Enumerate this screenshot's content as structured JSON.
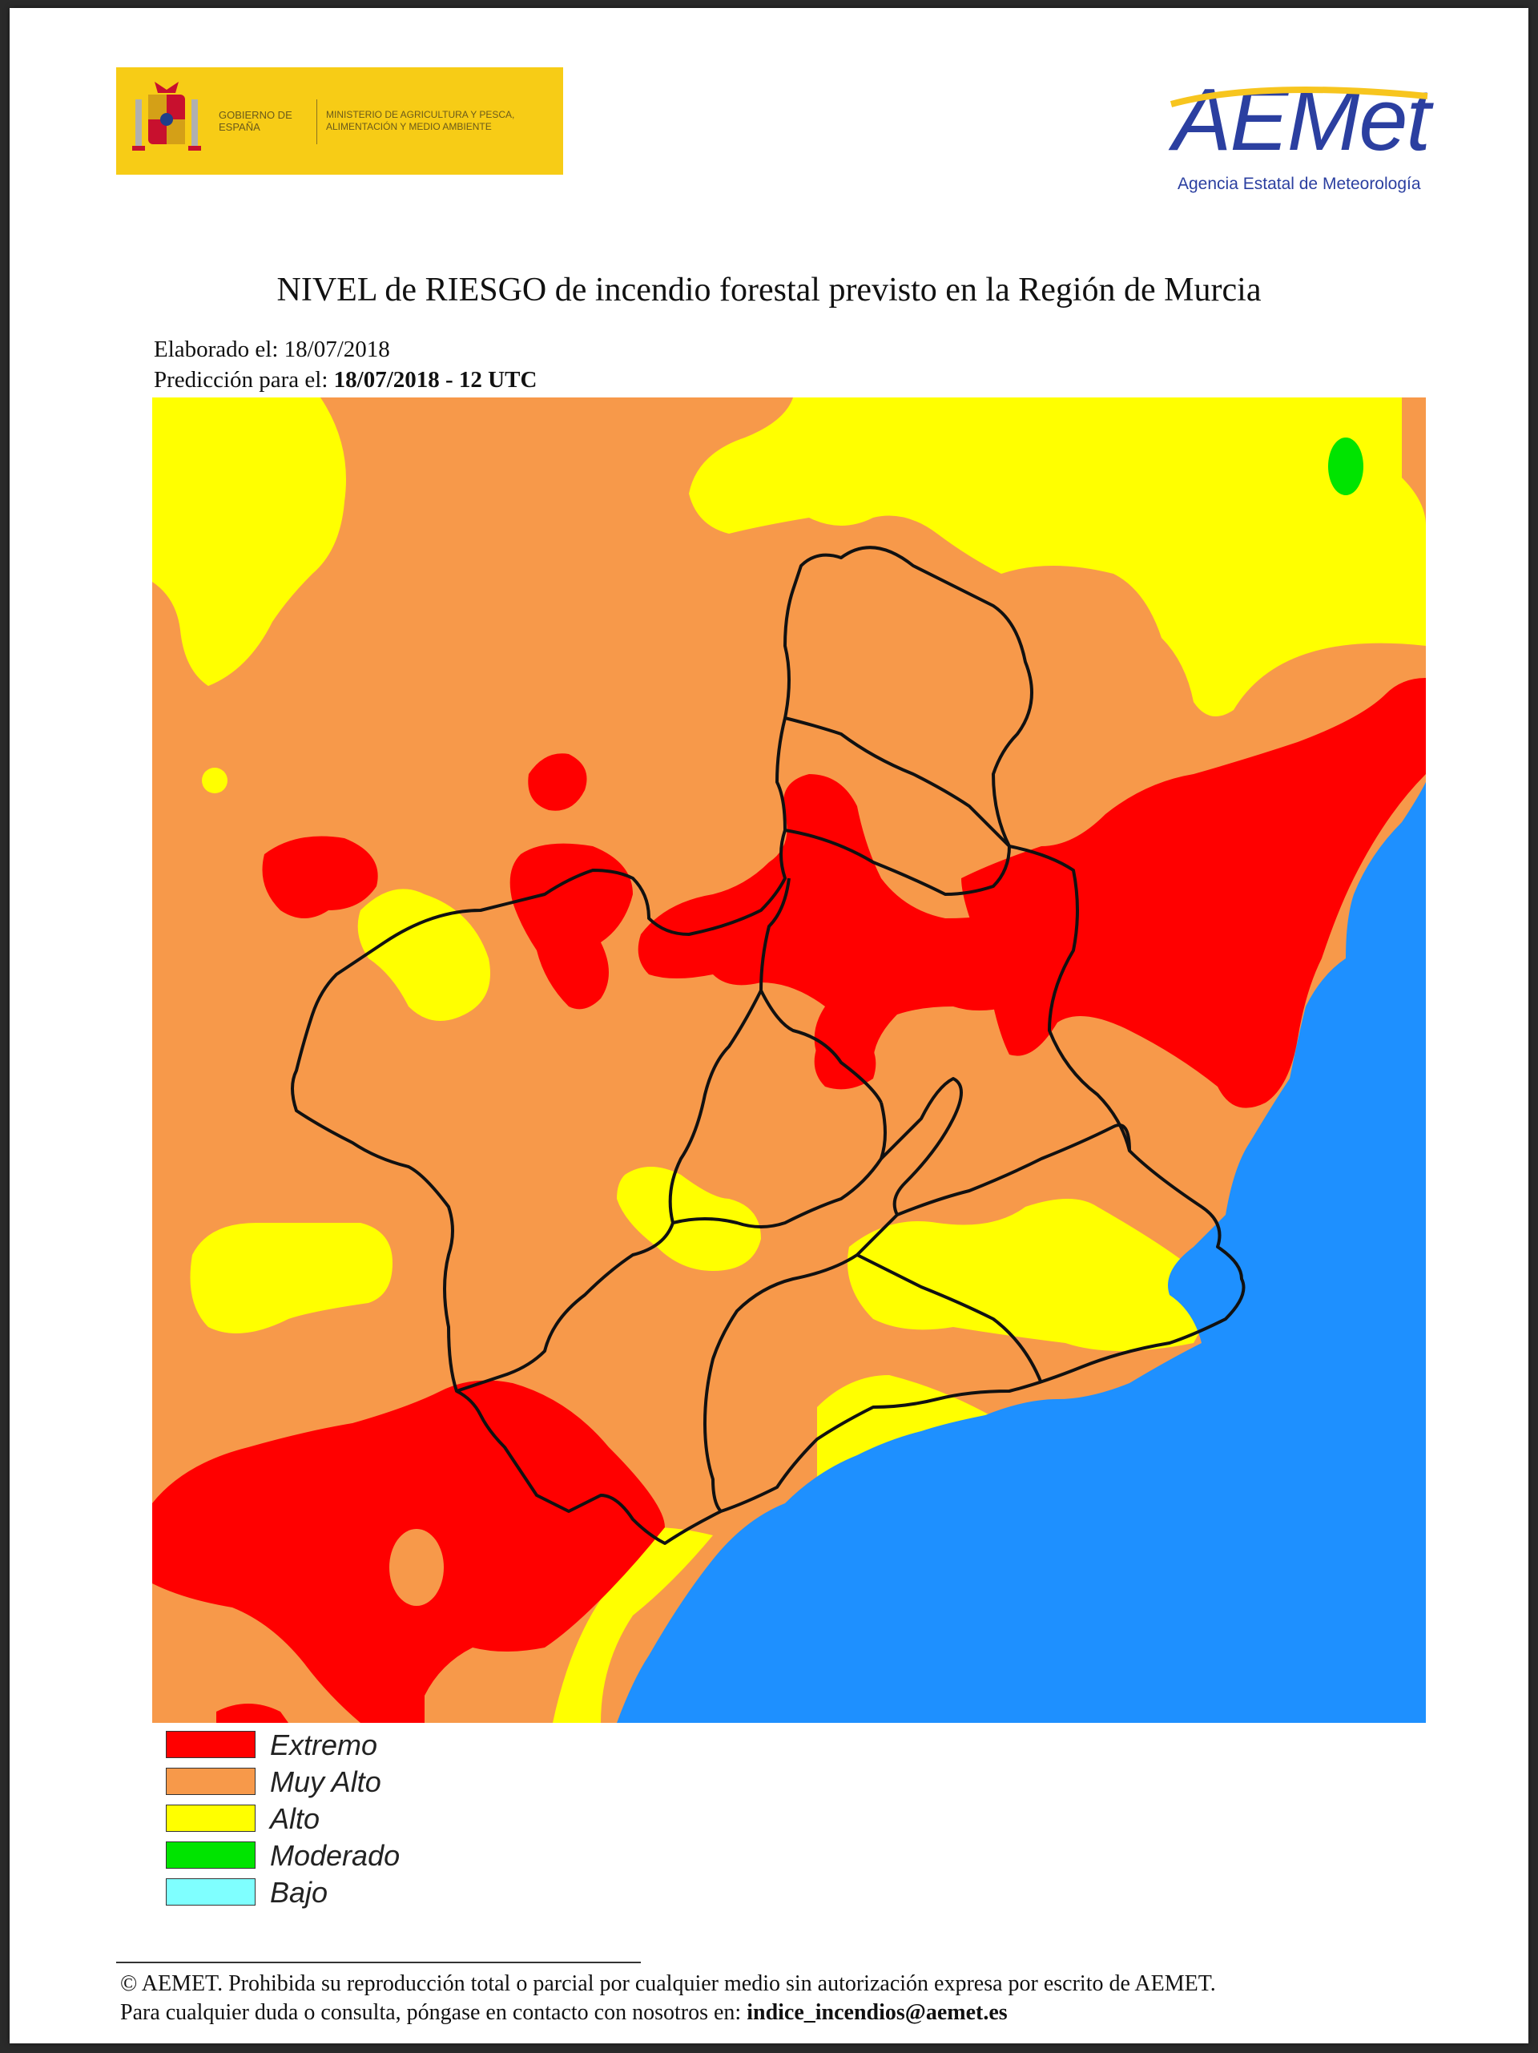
{
  "header": {
    "gov_logo_line1": "GOBIERNO DE ESPAÑA",
    "gov_logo_line2": "MINISTERIO DE AGRICULTURA Y PESCA, ALIMENTACIÓN Y MEDIO AMBIENTE",
    "agency_logo_text": "AEMet",
    "agency_subtitle": "Agencia Estatal de Meteorología"
  },
  "title": "NIVEL de RIESGO de incendio forestal previsto en la Región de Murcia",
  "meta": {
    "prepared_label": "Elaborado el:",
    "prepared_date": "18/07/2018",
    "forecast_label": "Predicción para el:",
    "forecast_value": "18/07/2018 - 12 UTC"
  },
  "map": {
    "colors": {
      "extremo": "#ff0000",
      "muy_alto": "#f7994a",
      "alto": "#ffff00",
      "moderado": "#00e400",
      "bajo": "#7fffff",
      "sea": "#1e90ff",
      "border": "#111111"
    }
  },
  "legend": [
    {
      "label": "Extremo",
      "color": "#ff0000"
    },
    {
      "label": "Muy Alto",
      "color": "#f7994a"
    },
    {
      "label": "Alto",
      "color": "#ffff00"
    },
    {
      "label": "Moderado",
      "color": "#00e400"
    },
    {
      "label": "Bajo",
      "color": "#7fffff"
    }
  ],
  "footer": {
    "copyright": "© AEMET. Prohibida su reproducción total o parcial por cualquier medio sin autorización expresa por escrito de AEMET.",
    "contact_text": "Para cualquier duda o consulta, póngase en contacto con nosotros en:",
    "contact_email": "indice_incendios@aemet.es"
  }
}
